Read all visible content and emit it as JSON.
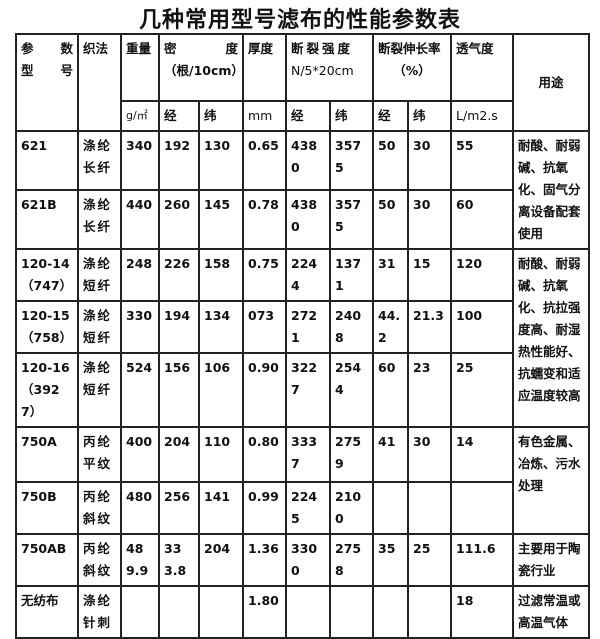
{
  "title": "几种常用型号滤布的性能参数表",
  "header": {
    "param_top": [
      "参",
      "数"
    ],
    "param_bottom": [
      "型",
      "号"
    ],
    "weave": "织法",
    "weight": "重量",
    "weight_unit": "g/㎡",
    "density": [
      "密",
      "度"
    ],
    "density_unit": "（根/10cm）",
    "warp": "经",
    "weft": "纬",
    "thickness": "厚度",
    "thickness_unit": "mm",
    "strength": "断裂强度",
    "strength_unit": "N/5*20cm",
    "elongation": "断裂伸长率",
    "elongation_unit": "（%）",
    "permeability": "透气度",
    "permeability_unit": "L/m2.s",
    "usage": "用途"
  },
  "rows": [
    {
      "model": "621",
      "weave": "涤纶长纤",
      "weight": "340",
      "d_warp": "192",
      "d_weft": "130",
      "thick": "0.65",
      "s_warp": "4380",
      "s_weft": "3575",
      "e_warp": "50",
      "e_weft": "30",
      "perm": "55"
    },
    {
      "model": "621B",
      "weave": "涤纶长纤",
      "weight": "440",
      "d_warp": "260",
      "d_weft": "145",
      "thick": "0.78",
      "s_warp": "4380",
      "s_weft": "3575",
      "e_warp": "50",
      "e_weft": "30",
      "perm": "60"
    },
    {
      "model": "120-14（747）",
      "weave": "涤纶短纤",
      "weight": "248",
      "d_warp": "226",
      "d_weft": "158",
      "thick": "0.75",
      "s_warp": "2244",
      "s_weft": "1371",
      "e_warp": "31",
      "e_weft": "15",
      "perm": "120"
    },
    {
      "model": "120-15（758）",
      "weave": "涤纶短纤",
      "weight": "330",
      "d_warp": "194",
      "d_weft": "134",
      "thick": "073",
      "s_warp": "2721",
      "s_weft": "2408",
      "e_warp": "44.2",
      "e_weft": "21.3",
      "perm": "100"
    },
    {
      "model": "120-16（3927）",
      "weave": "涤纶短纤",
      "weight": "524",
      "d_warp": "156",
      "d_weft": "106",
      "thick": "0.90",
      "s_warp": "3227",
      "s_weft": "2544",
      "e_warp": "60",
      "e_weft": "23",
      "perm": "25"
    },
    {
      "model": "750A",
      "weave": "丙纶平纹",
      "weight": "400",
      "d_warp": "204",
      "d_weft": "110",
      "thick": "0.80",
      "s_warp": "3337",
      "s_weft": "2759",
      "e_warp": "41",
      "e_weft": "30",
      "perm": "14"
    },
    {
      "model": "750B",
      "weave": "丙纶斜纹",
      "weight": "480",
      "d_warp": "256",
      "d_weft": "141",
      "thick": "0.99",
      "s_warp": "2245",
      "s_weft": "2100",
      "e_warp": "",
      "e_weft": "",
      "perm": ""
    },
    {
      "model": "750AB",
      "weave": "丙纶斜纹",
      "weight": "489.9",
      "d_warp": "333.8",
      "d_weft": "204",
      "thick": "1.36",
      "s_warp": "3300",
      "s_weft": "2758",
      "e_warp": "35",
      "e_weft": "25",
      "perm": "111.6"
    },
    {
      "model": "无纺布",
      "weave": "涤纶针刺",
      "weight": "",
      "d_warp": "",
      "d_weft": "",
      "thick": "1.80",
      "s_warp": "",
      "s_weft": "",
      "e_warp": "",
      "e_weft": "",
      "perm": "18"
    }
  ],
  "usages": [
    "耐酸、耐弱碱、抗氧化、固气分离设备配套使用",
    "耐酸、耐弱碱、抗氧化、抗拉强度高、耐湿热性能好、抗蠕变和适应温度较高",
    "有色金属、冶炼、污水处理",
    "主要用于陶瓷行业",
    "过滤常温或高温气体"
  ]
}
